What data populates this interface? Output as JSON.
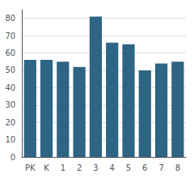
{
  "chart_data": {
    "type": "bar",
    "categories": [
      "PK",
      "K",
      "1",
      "2",
      "3",
      "4",
      "5",
      "6",
      "7",
      "8"
    ],
    "values": [
      56,
      56,
      55,
      52,
      81,
      66,
      65,
      50,
      54,
      55
    ],
    "color": "#2e6484",
    "ylim": [
      0,
      85
    ],
    "yticks": [
      0,
      10,
      20,
      30,
      40,
      50,
      60,
      70,
      80
    ],
    "grid": true
  }
}
